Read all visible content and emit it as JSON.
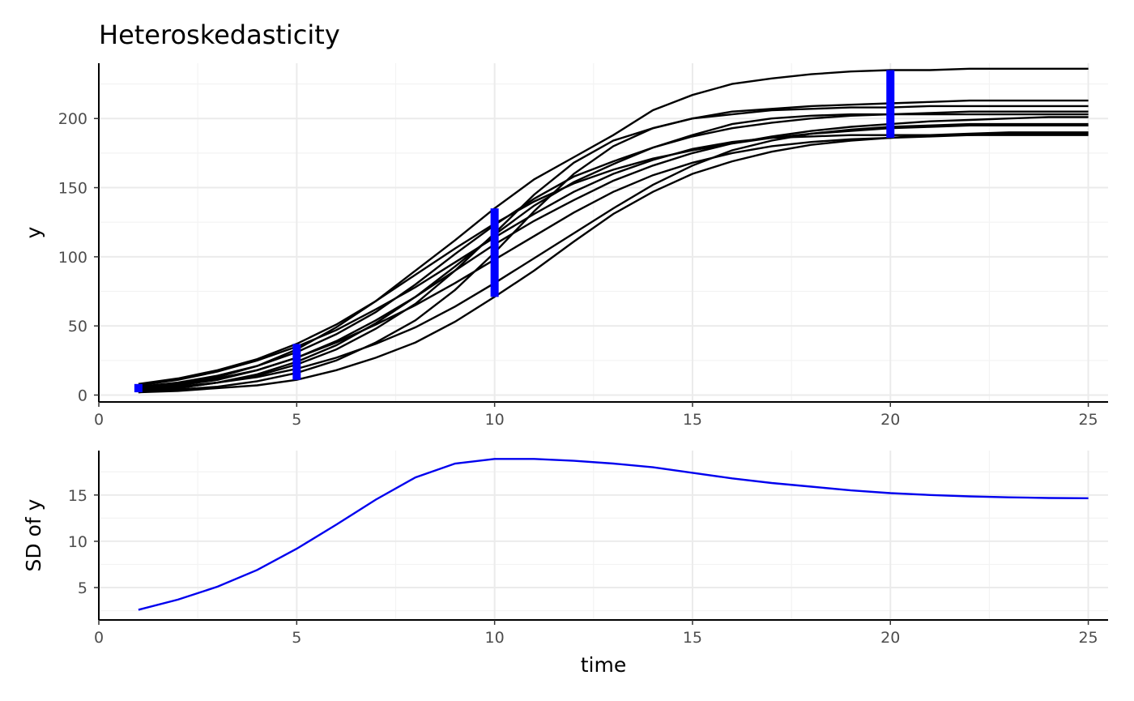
{
  "chart_data": [
    {
      "type": "line",
      "title": "Heteroskedasticity",
      "xlabel": "",
      "ylabel": "y",
      "xlim": [
        0,
        25.5
      ],
      "ylim": [
        -5,
        240
      ],
      "x_ticks": [
        0,
        5,
        10,
        15,
        20,
        25
      ],
      "y_ticks": [
        0,
        50,
        100,
        150,
        200
      ],
      "grid": true,
      "x": [
        1,
        2,
        3,
        4,
        5,
        6,
        7,
        8,
        9,
        10,
        11,
        12,
        13,
        14,
        15,
        16,
        17,
        18,
        19,
        20,
        21,
        22,
        23,
        24,
        25
      ],
      "series": [
        {
          "values": [
            5,
            8,
            13,
            21,
            33,
            49,
            68,
            90,
            112,
            135,
            156,
            172,
            188,
            206,
            217,
            225,
            229,
            232,
            234,
            235,
            235,
            236,
            236,
            236,
            236
          ]
        },
        {
          "values": [
            3,
            5,
            9,
            14,
            22,
            33,
            48,
            66,
            90,
            117,
            145,
            168,
            184,
            193,
            200,
            205,
            207,
            209,
            210,
            211,
            212,
            213,
            213,
            213,
            213
          ]
        },
        {
          "values": [
            2,
            4,
            6,
            10,
            16,
            25,
            38,
            54,
            76,
            103,
            133,
            160,
            180,
            193,
            200,
            203,
            206,
            207,
            208,
            208,
            209,
            209,
            209,
            209,
            209
          ]
        },
        {
          "values": [
            6,
            9,
            14,
            21,
            31,
            44,
            60,
            80,
            102,
            123,
            142,
            158,
            169,
            179,
            187,
            193,
            197,
            200,
            202,
            203,
            204,
            205,
            205,
            205,
            205
          ]
        },
        {
          "values": [
            4,
            7,
            11,
            18,
            27,
            39,
            54,
            71,
            90,
            109,
            126,
            141,
            155,
            166,
            175,
            182,
            187,
            191,
            194,
            196,
            198,
            199,
            200,
            201,
            201
          ]
        },
        {
          "values": [
            8,
            12,
            18,
            26,
            37,
            51,
            68,
            87,
            106,
            124,
            140,
            153,
            163,
            171,
            177,
            182,
            186,
            189,
            191,
            193,
            194,
            195,
            195,
            195,
            195
          ]
        },
        {
          "values": [
            3,
            5,
            9,
            15,
            24,
            36,
            52,
            71,
            93,
            116,
            137,
            154,
            167,
            179,
            188,
            196,
            200,
            202,
            203,
            203,
            203,
            203,
            203,
            203,
            203
          ]
        },
        {
          "values": [
            7,
            11,
            17,
            25,
            35,
            47,
            62,
            78,
            96,
            114,
            131,
            147,
            160,
            170,
            178,
            183,
            186,
            187,
            188,
            188,
            188,
            188,
            189,
            189,
            189
          ]
        },
        {
          "values": [
            5,
            8,
            12,
            18,
            27,
            38,
            51,
            65,
            81,
            98,
            115,
            132,
            147,
            159,
            168,
            175,
            180,
            183,
            185,
            186,
            187,
            188,
            188,
            188,
            188
          ]
        },
        {
          "values": [
            2,
            3,
            5,
            7,
            11,
            18,
            27,
            38,
            53,
            71,
            90,
            111,
            131,
            147,
            160,
            169,
            176,
            181,
            184,
            186,
            188,
            189,
            190,
            190,
            190
          ]
        },
        {
          "values": [
            4,
            6,
            9,
            13,
            19,
            27,
            37,
            49,
            64,
            81,
            99,
            117,
            135,
            152,
            166,
            177,
            184,
            189,
            192,
            194,
            195,
            196,
            196,
            196,
            196
          ]
        }
      ],
      "sd_bars": [
        {
          "x": 1,
          "ymin": 2,
          "ymax": 8
        },
        {
          "x": 5,
          "ymin": 11,
          "ymax": 37
        },
        {
          "x": 10,
          "ymin": 71,
          "ymax": 135
        },
        {
          "x": 20,
          "ymin": 186,
          "ymax": 235
        }
      ]
    },
    {
      "type": "line",
      "title": "",
      "xlabel": "time",
      "ylabel": "SD of y",
      "xlim": [
        0,
        25.5
      ],
      "ylim": [
        1.5,
        19.8
      ],
      "x_ticks": [
        0,
        5,
        10,
        15,
        20,
        25
      ],
      "y_ticks": [
        5,
        10,
        15
      ],
      "grid": true,
      "color": "#0000ee",
      "x": [
        1,
        2,
        3,
        4,
        5,
        6,
        7,
        8,
        9,
        10,
        11,
        12,
        13,
        14,
        15,
        16,
        17,
        18,
        19,
        20,
        21,
        22,
        23,
        24,
        25
      ],
      "values": [
        2.6,
        3.7,
        5.1,
        6.9,
        9.2,
        11.8,
        14.5,
        16.9,
        18.4,
        18.9,
        18.9,
        18.7,
        18.4,
        18.0,
        17.4,
        16.8,
        16.3,
        15.9,
        15.5,
        15.2,
        15.0,
        14.85,
        14.75,
        14.68,
        14.65
      ]
    }
  ]
}
